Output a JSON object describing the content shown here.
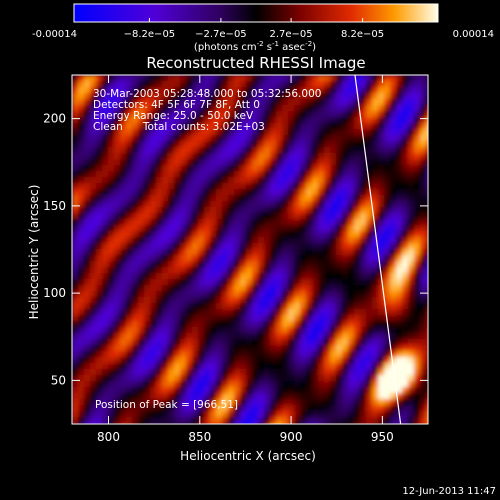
{
  "chart_data": {
    "type": "heatmap",
    "title": "Reconstructed RHESSI Image",
    "xlabel": "Heliocentric X (arcsec)",
    "ylabel": "Heliocentric Y (arcsec)",
    "xlim": [
      780,
      975
    ],
    "ylim": [
      25,
      225
    ],
    "x_ticks": [
      800,
      850,
      900,
      950
    ],
    "y_ticks": [
      50,
      100,
      150,
      200
    ],
    "colorbar": {
      "label_main": "(photons cm",
      "label_sup1": "-2",
      "label_mid1": " s",
      "label_sup2": "-1",
      "label_mid2": " asec",
      "label_sup3": "-2",
      "label_end": ")",
      "range": [
        -0.00014,
        0.00014
      ],
      "tick_labels": [
        "-0.00014",
        "−8.2e−05",
        "−2.7e−05",
        "2.7e−05",
        "8.2e−05",
        "0.00014"
      ],
      "tick_values": [
        -0.00014,
        -8.2e-05,
        -2.7e-05,
        2.7e-05,
        8.2e-05,
        0.00014
      ]
    },
    "info_lines": [
      "30-Mar-2003 05:28:48.000 to 05:32:56.000",
      "Detectors: 4F 5F 6F 7F 8F, Att 0",
      "Energy Range: 25.0 - 50.0 keV",
      "Clean      Total counts: 3.02E+03"
    ],
    "peak_text": "Position of Peak = [966,51]",
    "peak": [
      966,
      51
    ],
    "limb_line": [
      [
        935,
        225
      ],
      [
        960,
        25
      ]
    ],
    "timestamp": "12-Jun-2013 11:47",
    "colors": {
      "negative_low": "#0000ff",
      "zero": "#000000",
      "positive_mid": "#d62000",
      "positive_high": "#ffffc0",
      "limb": "#ffffff"
    }
  }
}
